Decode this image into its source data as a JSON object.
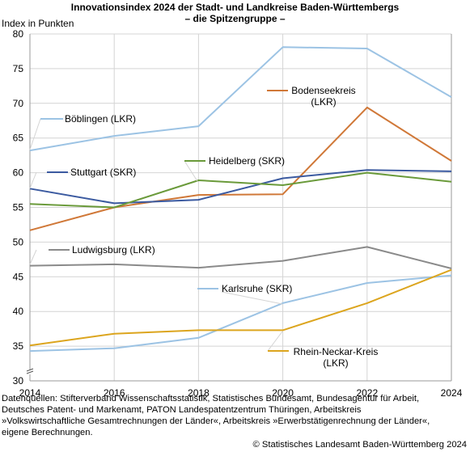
{
  "title_line1": "Innovationsindex 2024 der Stadt- und Landkreise Baden-Württembergs",
  "title_line2": "– die Spitzengruppe –",
  "footer": {
    "line1": "Datenquellen: Stifterverband Wissenschaftsstatistik, Statistisches Bundesamt, Bundesagentur für Arbeit,",
    "line2": "Deutsches Patent- und Markenamt, PATON Landespatentzentrum Thüringen, Arbeitskreis",
    "line3": "»Volkswirtschaftliche Gesamtrechnungen der Länder«, Arbeitskreis »Erwerbstätigenrechnung der Länder«,",
    "line4": "eigene Berechnungen.",
    "copyright": "© Statistisches Landesamt Baden-Württemberg 2024"
  },
  "chart_data": {
    "type": "line",
    "title": "Innovationsindex 2024 der Stadt- und Landkreise Baden-Württembergs – die Spitzengruppe –",
    "xlabel": "",
    "ylabel": "Index in Punkten",
    "x": [
      2014,
      2016,
      2018,
      2020,
      2022,
      2024
    ],
    "xticks": [
      "2014",
      "2016",
      "2018",
      "2020",
      "2022",
      "2024"
    ],
    "yticks": [
      "30",
      "35",
      "40",
      "45",
      "50",
      "55",
      "60",
      "65",
      "70",
      "75",
      "80"
    ],
    "ylim": [
      30,
      80
    ],
    "grid": true,
    "axis_break": true,
    "series": [
      {
        "name": "Böblingen (LKR)",
        "color": "#9cc3e4",
        "values": [
          63.2,
          65.3,
          66.7,
          78.1,
          77.9,
          70.9
        ]
      },
      {
        "name": "Bodenseekreis (LKR)",
        "color": "#d07838",
        "values": [
          51.7,
          55.0,
          56.8,
          56.9,
          69.4,
          61.7
        ]
      },
      {
        "name": "Stuttgart (SKR)",
        "color": "#3b5aa0",
        "values": [
          57.7,
          55.6,
          56.1,
          59.2,
          60.4,
          60.2
        ]
      },
      {
        "name": "Heidelberg (SKR)",
        "color": "#6a9a3a",
        "values": [
          55.5,
          55.0,
          58.9,
          58.2,
          60.0,
          58.7
        ]
      },
      {
        "name": "Ludwigsburg (LKR)",
        "color": "#8a8a8a",
        "values": [
          46.6,
          46.8,
          46.3,
          47.3,
          49.3,
          46.2
        ]
      },
      {
        "name": "Karlsruhe (SKR)",
        "color": "#9cc3e4",
        "values": [
          34.3,
          34.7,
          36.2,
          41.2,
          44.1,
          45.2
        ]
      },
      {
        "name": "Rhein-Neckar-Kreis (LKR)",
        "color": "#dca51e",
        "values": [
          35.1,
          36.8,
          37.3,
          37.3,
          41.2,
          46.0
        ]
      }
    ],
    "labels": [
      {
        "lines": [
          "Böblingen (LKR)"
        ],
        "series": 0
      },
      {
        "lines": [
          "Bodenseekreis",
          "(LKR)"
        ],
        "series": 1
      },
      {
        "lines": [
          "Stuttgart (SKR)"
        ],
        "series": 2
      },
      {
        "lines": [
          "Heidelberg (SKR)"
        ],
        "series": 3
      },
      {
        "lines": [
          "Ludwigsburg (LKR)"
        ],
        "series": 4
      },
      {
        "lines": [
          "Karlsruhe (SKR)"
        ],
        "series": 5
      },
      {
        "lines": [
          "Rhein-Neckar-Kreis",
          "(LKR)"
        ],
        "series": 6
      }
    ]
  }
}
